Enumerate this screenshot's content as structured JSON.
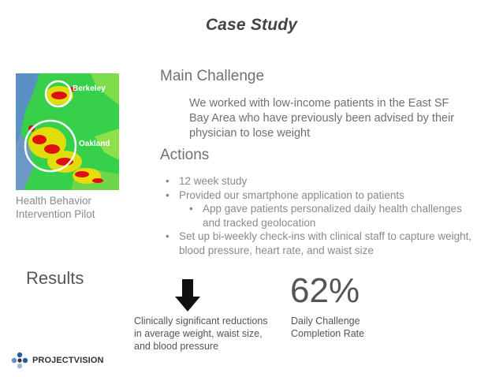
{
  "slide": {
    "title": "Case Study",
    "map": {
      "label_1": "Berkeley",
      "label_2": "Oakland",
      "caption": "Health Behavior Intervention Pilot"
    },
    "main_challenge": {
      "heading": "Main Challenge",
      "body": "We worked with low-income patients in the East SF Bay Area who have previously been advised by their physician to lose weight"
    },
    "actions": {
      "heading": "Actions",
      "items": [
        "12 week study",
        "Provided our smartphone application to patients",
        "App gave patients personalized daily health challenges and tracked geolocation",
        "Set up bi-weekly check-ins with clinical staff to capture weight, blood pressure, heart rate, and waist size"
      ]
    },
    "results": {
      "heading": "Results",
      "stat_1": {
        "icon": "down-arrow-icon",
        "text": "Clinically significant reductions in average weight, waist size, and blood pressure"
      },
      "stat_2": {
        "value": "62%",
        "text": "Daily Challenge Completion Rate"
      }
    },
    "logo": {
      "text": "PROJECTVISION"
    }
  }
}
